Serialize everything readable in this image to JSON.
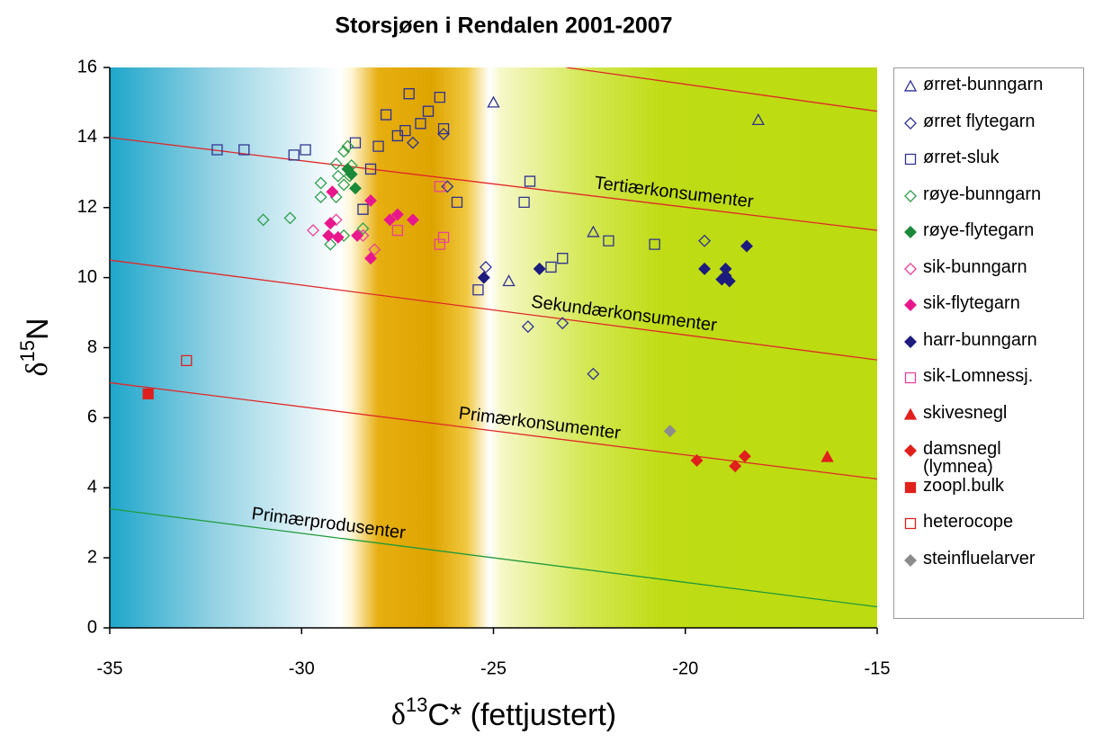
{
  "chart_data": {
    "type": "scatter",
    "title": "Storsjøen i Rendalen 2001-2007",
    "x_label": {
      "symbol": "δ",
      "superscript": "13",
      "text": "C* (fettjustert)"
    },
    "y_label": {
      "symbol": "δ",
      "superscript": "15",
      "text": "N"
    },
    "xlim": [
      -35,
      -15
    ],
    "xticks": [
      -35,
      -30,
      -25,
      -20,
      -15
    ],
    "ylim": [
      0,
      16
    ],
    "yticks": [
      0,
      2,
      4,
      6,
      8,
      10,
      12,
      14,
      16
    ],
    "trophic_lines": [
      {
        "color": "#e02828",
        "x": [
          -23.1,
          -15
        ],
        "y": [
          16,
          14.75
        ]
      },
      {
        "label": "Tertiærkonsumenter",
        "color": "#e02828",
        "x": [
          -35,
          -15
        ],
        "y": [
          14.0,
          11.35
        ]
      },
      {
        "label": "Sekundærkonsumenter",
        "color": "#e02828",
        "x": [
          -35,
          -15
        ],
        "y": [
          10.5,
          7.65
        ]
      },
      {
        "label": "Primærkonsumenter",
        "color": "#e02828",
        "x": [
          -35,
          -15
        ],
        "y": [
          7.0,
          4.25
        ]
      },
      {
        "label": "Primærprodusenter",
        "color": "#1f9a3a",
        "x": [
          -35,
          -15
        ],
        "y": [
          3.4,
          0.6
        ]
      }
    ],
    "series": [
      {
        "name": "ørret-bunngarn",
        "color": "#2e3192",
        "marker": "triangle",
        "filled": false,
        "x": [
          -25.0,
          -18.1,
          -22.4,
          -24.6
        ],
        "y": [
          15.0,
          14.5,
          11.3,
          9.9
        ]
      },
      {
        "name": "ørret flytegarn",
        "color": "#2e3192",
        "marker": "diamond",
        "filled": false,
        "x": [
          -27.1,
          -26.3,
          -26.2,
          -25.2,
          -24.1,
          -23.2,
          -22.4,
          -19.5
        ],
        "y": [
          13.85,
          14.1,
          12.6,
          10.3,
          8.6,
          8.7,
          7.25,
          11.05
        ]
      },
      {
        "name": "ørret-sluk",
        "color": "#2e3192",
        "marker": "square",
        "filled": false,
        "x": [
          -32.2,
          -31.5,
          -30.2,
          -29.9,
          -28.6,
          -28.0,
          -28.2,
          -27.8,
          -27.5,
          -27.3,
          -27.2,
          -26.9,
          -26.7,
          -26.4,
          -26.3,
          -25.95,
          -25.4,
          -24.2,
          -24.05,
          -23.5,
          -23.2,
          -22.0,
          -20.8,
          -28.4
        ],
        "y": [
          13.65,
          13.65,
          13.5,
          13.65,
          13.85,
          13.75,
          13.1,
          14.65,
          14.05,
          14.2,
          15.25,
          14.4,
          14.75,
          15.15,
          14.25,
          12.15,
          9.65,
          12.15,
          12.75,
          10.3,
          10.55,
          11.05,
          10.95,
          11.95
        ]
      },
      {
        "name": "røye-bunngarn",
        "color": "#2f9e4c",
        "marker": "diamond",
        "filled": false,
        "x": [
          -31.0,
          -30.3,
          -29.5,
          -29.5,
          -29.1,
          -29.05,
          -28.9,
          -28.8,
          -28.75,
          -28.9,
          -28.7,
          -29.1,
          -29.25,
          -28.9,
          -28.4
        ],
        "y": [
          11.65,
          11.7,
          12.7,
          12.3,
          13.25,
          12.9,
          13.6,
          13.75,
          12.9,
          12.65,
          13.2,
          12.3,
          10.95,
          11.2,
          11.4
        ]
      },
      {
        "name": "røye-flytegarn",
        "color": "#1a8a3a",
        "marker": "diamond",
        "filled": true,
        "x": [
          -28.8,
          -28.7,
          -28.6
        ],
        "y": [
          13.1,
          12.95,
          12.55
        ]
      },
      {
        "name": "sik-bunngarn",
        "color": "#e8409a",
        "marker": "diamond",
        "filled": false,
        "x": [
          -29.7,
          -29.1,
          -28.4,
          -28.1
        ],
        "y": [
          11.35,
          11.65,
          11.2,
          10.8
        ]
      },
      {
        "name": "sik-flytegarn",
        "color": "#e8188c",
        "marker": "diamond",
        "filled": true,
        "x": [
          -29.2,
          -29.25,
          -29.3,
          -29.05,
          -28.55,
          -28.2,
          -28.2,
          -27.7,
          -27.5,
          -27.1
        ],
        "y": [
          12.45,
          11.55,
          11.2,
          11.15,
          11.2,
          12.2,
          10.55,
          11.65,
          11.8,
          11.65
        ]
      },
      {
        "name": "harr-bunngarn",
        "color": "#1c1c7e",
        "marker": "diamond",
        "filled": true,
        "x": [
          -25.25,
          -23.8,
          -19.5,
          -18.95,
          -18.95,
          -19.05,
          -18.85,
          -18.4
        ],
        "y": [
          10.0,
          10.25,
          10.25,
          10.25,
          10.05,
          9.95,
          9.9,
          10.9
        ]
      },
      {
        "name": "sik-Lomnessj.",
        "color": "#e8409a",
        "marker": "square",
        "filled": false,
        "x": [
          -26.4,
          -26.3,
          -26.4,
          -27.5
        ],
        "y": [
          12.6,
          11.15,
          10.95,
          11.35
        ]
      },
      {
        "name": "skivesnegl",
        "color": "#e0201c",
        "marker": "triangle",
        "filled": true,
        "x": [
          -16.3
        ],
        "y": [
          4.88
        ]
      },
      {
        "name": "damsnegl\n(lymnea)",
        "color": "#e0201c",
        "marker": "diamond",
        "filled": true,
        "x": [
          -19.7,
          -18.7,
          -18.45
        ],
        "y": [
          4.78,
          4.62,
          4.9
        ]
      },
      {
        "name": "zoopl.bulk",
        "color": "#e0201c",
        "marker": "square",
        "filled": true,
        "x": [
          -34.0
        ],
        "y": [
          6.68
        ]
      },
      {
        "name": "heterocope",
        "color": "#e0201c",
        "marker": "square",
        "filled": false,
        "x": [
          -33.0
        ],
        "y": [
          7.63
        ]
      },
      {
        "name": "steinfluelarver",
        "color": "#8c8c8c",
        "marker": "diamond",
        "filled": true,
        "x": [
          -20.4
        ],
        "y": [
          5.62
        ]
      }
    ]
  }
}
